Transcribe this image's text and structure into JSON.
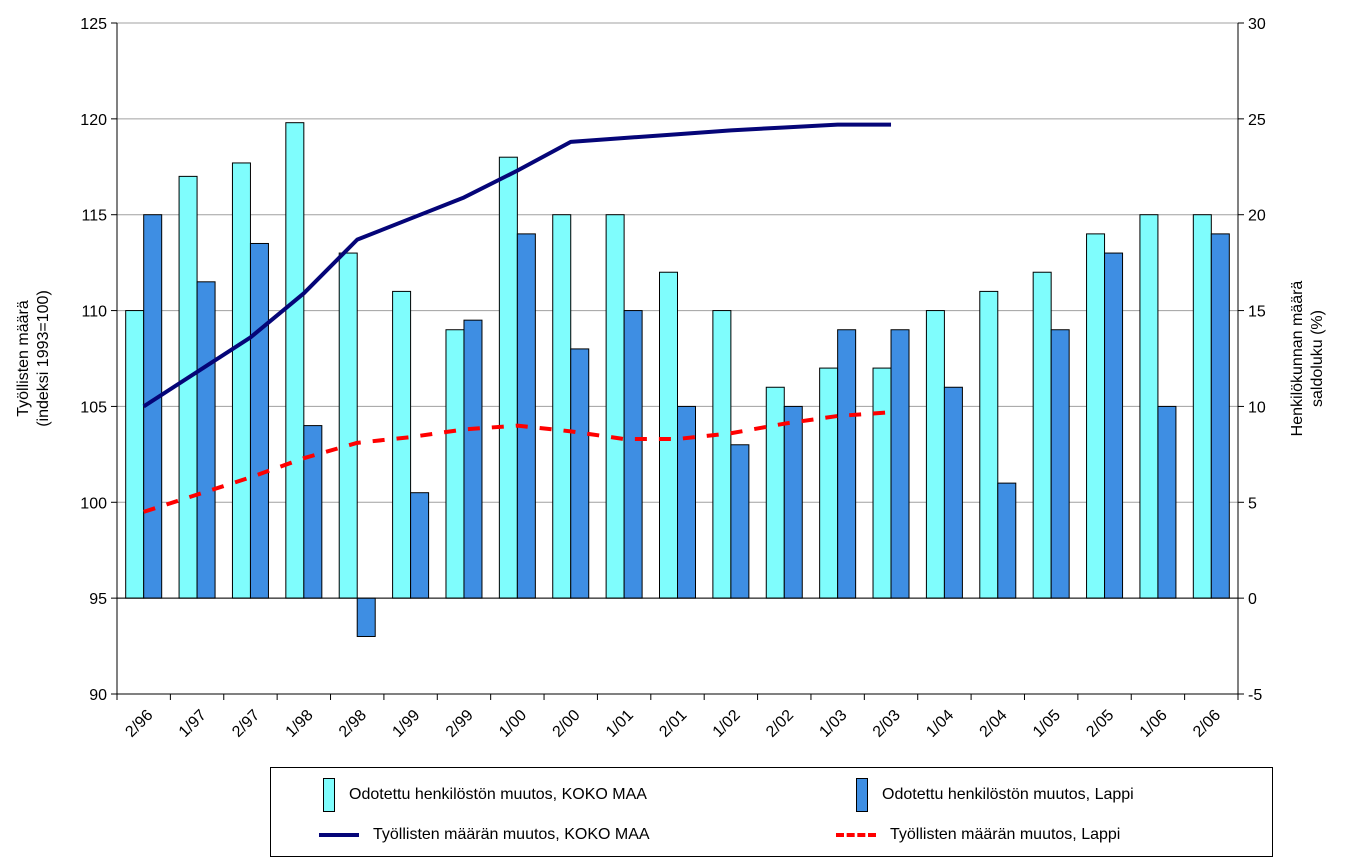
{
  "colors": {
    "bar_koko": "#7ffdfd",
    "bar_lappi": "#3e8ee3",
    "line_koko": "#050578",
    "line_lappi": "#ff0000",
    "grid": "#a0a0a0"
  },
  "chart_data": {
    "type": "bar",
    "categories": [
      "2/96",
      "1/97",
      "2/97",
      "1/98",
      "2/98",
      "1/99",
      "2/99",
      "1/00",
      "2/00",
      "1/01",
      "2/01",
      "1/02",
      "2/02",
      "1/03",
      "2/03",
      "1/04",
      "2/04",
      "1/05",
      "2/05",
      "1/06",
      "2/06"
    ],
    "ylabel": "Työllisten määrä\n(indeksi 1993=100)",
    "y2label": "Henkilökunnan määrä\nsaldoluku (%)",
    "ylim": [
      90,
      125
    ],
    "y2lim": [
      -5,
      30
    ],
    "yticks": [
      90,
      95,
      100,
      105,
      110,
      115,
      120,
      125
    ],
    "y2ticks": [
      -5,
      0,
      5,
      10,
      15,
      20,
      25,
      30
    ],
    "grid": true,
    "legend_position": "bottom",
    "series": [
      {
        "name": "Odotettu henkilöstön muutos, KOKO MAA",
        "kind": "bar",
        "axis": "right",
        "values": [
          15,
          22,
          22.7,
          24.8,
          18,
          16,
          14,
          23,
          20,
          20,
          17,
          15,
          11,
          12,
          12,
          15,
          16,
          17,
          19,
          20,
          20
        ]
      },
      {
        "name": "Odotettu henkilöstön muutos, Lappi",
        "kind": "bar",
        "axis": "right",
        "values": [
          20,
          16.5,
          18.5,
          9,
          -2,
          5.5,
          14.5,
          19,
          13,
          15,
          10,
          8,
          10,
          14,
          14,
          11,
          6,
          14,
          18,
          10,
          19
        ]
      },
      {
        "name": "Työllisten määrän muutos, KOKO MAA",
        "kind": "line",
        "axis": "left",
        "values": [
          105,
          106.8,
          108.6,
          110.9,
          113.7,
          114.8,
          115.9,
          117.3,
          118.8,
          119,
          119.2,
          119.4,
          119.55,
          119.7,
          119.7,
          null,
          null,
          null,
          null,
          null,
          null
        ]
      },
      {
        "name": "Työllisten määrän muutos, Lappi",
        "kind": "line",
        "axis": "left",
        "values": [
          99.5,
          100.4,
          101.3,
          102.3,
          103.1,
          103.4,
          103.8,
          104,
          103.7,
          103.3,
          103.3,
          103.6,
          104.1,
          104.5,
          104.7,
          null,
          null,
          null,
          null,
          null,
          null
        ]
      }
    ]
  }
}
